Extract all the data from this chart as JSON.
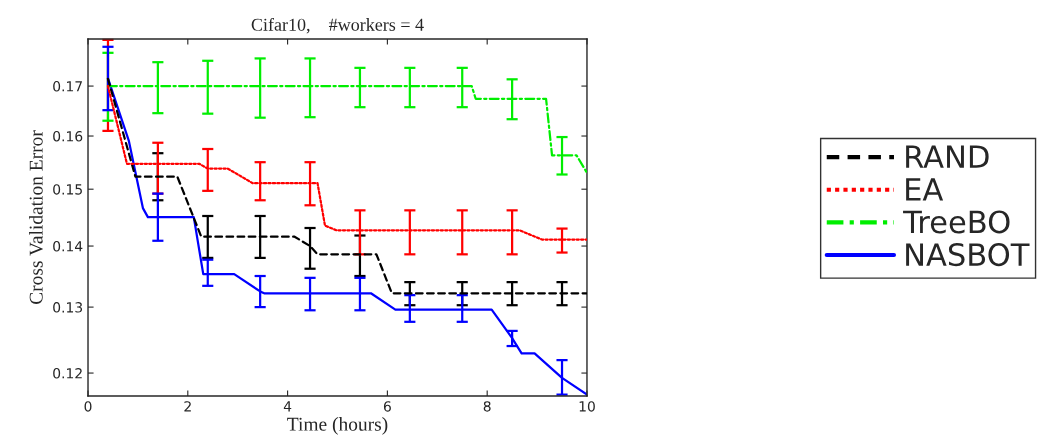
{
  "chart_data": {
    "type": "line",
    "title": "Cifar10,    #workers = 4",
    "xlabel": "Time (hours)",
    "ylabel": "Cross Validation Error",
    "xlim": [
      0,
      10
    ],
    "xticks": [
      0,
      2,
      4,
      6,
      8,
      10
    ],
    "ylim": [
      0.1167,
      0.18
    ],
    "yticks": [
      0.12,
      0.13,
      0.14,
      0.15,
      0.16,
      0.17
    ],
    "log": "y",
    "grid": false,
    "legend": "right",
    "series": [
      {
        "name": "RAND",
        "color": "#000000",
        "line_style": "dashed",
        "x": [
          0.4,
          0.95,
          1.4,
          1.79,
          2.27,
          2.4,
          3.45,
          4.14,
          4.45,
          4.6,
          5.45,
          5.78,
          6.09,
          6.45,
          7.5,
          8.5,
          9.5,
          10
        ],
        "values": [
          0.1715,
          0.1523,
          0.1523,
          0.1523,
          0.1416,
          0.1416,
          0.1416,
          0.1416,
          0.14,
          0.1386,
          0.1386,
          0.1386,
          0.1322,
          0.1322,
          0.1322,
          0.1322,
          0.1322,
          0.1322
        ],
        "errors": [
          null,
          null,
          [
            0.148,
            0.1567
          ],
          null,
          null,
          [
            0.138,
            0.1452
          ],
          [
            0.138,
            0.1452
          ],
          null,
          [
            0.1362,
            0.1431
          ],
          null,
          [
            0.135,
            0.1418
          ],
          null,
          null,
          [
            0.1303,
            0.134
          ],
          [
            0.1303,
            0.134
          ],
          [
            0.1303,
            0.134
          ],
          [
            0.1303,
            0.134
          ],
          null
        ]
      },
      {
        "name": "EA",
        "color": "#ff0000",
        "line_style": "dotted",
        "x": [
          0.4,
          0.78,
          1.4,
          2.23,
          2.4,
          2.8,
          3.3,
          3.45,
          4.45,
          4.6,
          4.75,
          4.98,
          5.45,
          6.45,
          7.5,
          8.5,
          8.65,
          9.1,
          9.5,
          10
        ],
        "values": [
          0.17,
          0.1547,
          0.1547,
          0.1547,
          0.1538,
          0.1538,
          0.1511,
          0.1511,
          0.1511,
          0.1511,
          0.1435,
          0.1427,
          0.1427,
          0.1427,
          0.1427,
          0.1427,
          0.1427,
          0.1411,
          0.1411,
          0.1411
        ],
        "errors": [
          [
            0.161,
            0.1798
          ],
          null,
          [
            0.1492,
            0.1587
          ],
          null,
          [
            0.1497,
            0.1575
          ],
          null,
          null,
          [
            0.148,
            0.155
          ],
          [
            0.1471,
            0.155
          ],
          null,
          null,
          null,
          [
            0.1386,
            0.1462
          ],
          [
            0.1386,
            0.1462
          ],
          [
            0.1386,
            0.1462
          ],
          [
            0.1386,
            0.1462
          ],
          null,
          null,
          [
            0.1389,
            0.143
          ],
          null
        ]
      },
      {
        "name": "TreeBO",
        "color": "#00ee00",
        "line_style": "dashdot",
        "x": [
          0.4,
          1.4,
          2.4,
          3.45,
          4.45,
          5.45,
          6.45,
          7.5,
          7.69,
          7.77,
          8.5,
          9.18,
          9.3,
          9.5,
          9.79,
          10
        ],
        "values": [
          0.17,
          0.17,
          0.17,
          0.17,
          0.17,
          0.17,
          0.17,
          0.17,
          0.17,
          0.1674,
          0.1674,
          0.1674,
          0.1563,
          0.1563,
          0.1563,
          0.153
        ],
        "errors": [
          [
            0.163,
            0.177
          ],
          [
            0.1645,
            0.175
          ],
          [
            0.1644,
            0.1753
          ],
          [
            0.1636,
            0.1758
          ],
          [
            0.1637,
            0.1758
          ],
          [
            0.1657,
            0.1738
          ],
          [
            0.1657,
            0.1738
          ],
          [
            0.1657,
            0.1738
          ],
          null,
          null,
          [
            0.1633,
            0.1714
          ],
          null,
          null,
          [
            0.1527,
            0.1598
          ],
          null,
          null
        ]
      },
      {
        "name": "NASBOT",
        "color": "#0000ff",
        "line_style": "solid",
        "x": [
          0.4,
          0.82,
          1.1,
          1.2,
          1.4,
          2.12,
          2.31,
          2.4,
          2.93,
          3.45,
          3.53,
          4.45,
          5.45,
          5.67,
          6.16,
          6.45,
          7.5,
          8.09,
          8.5,
          8.69,
          8.95,
          9.5,
          10
        ],
        "values": [
          0.1716,
          0.159,
          0.1466,
          0.145,
          0.145,
          0.145,
          0.1353,
          0.1353,
          0.1353,
          0.1325,
          0.1322,
          0.1322,
          0.1322,
          0.1322,
          0.1296,
          0.1296,
          0.1296,
          0.1296,
          0.1252,
          0.1229,
          0.1229,
          0.1193,
          0.1169
        ],
        "errors": [
          [
            0.1651,
            0.1783
          ],
          null,
          null,
          null,
          [
            0.1409,
            0.1492
          ],
          null,
          null,
          [
            0.1334,
            0.1377
          ],
          null,
          [
            0.13,
            0.135
          ],
          null,
          [
            0.1295,
            0.1347
          ],
          [
            0.1295,
            0.1347
          ],
          null,
          null,
          [
            0.1277,
            0.1319
          ],
          [
            0.1277,
            0.1319
          ],
          null,
          [
            0.124,
            0.1263
          ],
          null,
          null,
          [
            0.1169,
            0.1219
          ],
          null
        ]
      }
    ]
  }
}
